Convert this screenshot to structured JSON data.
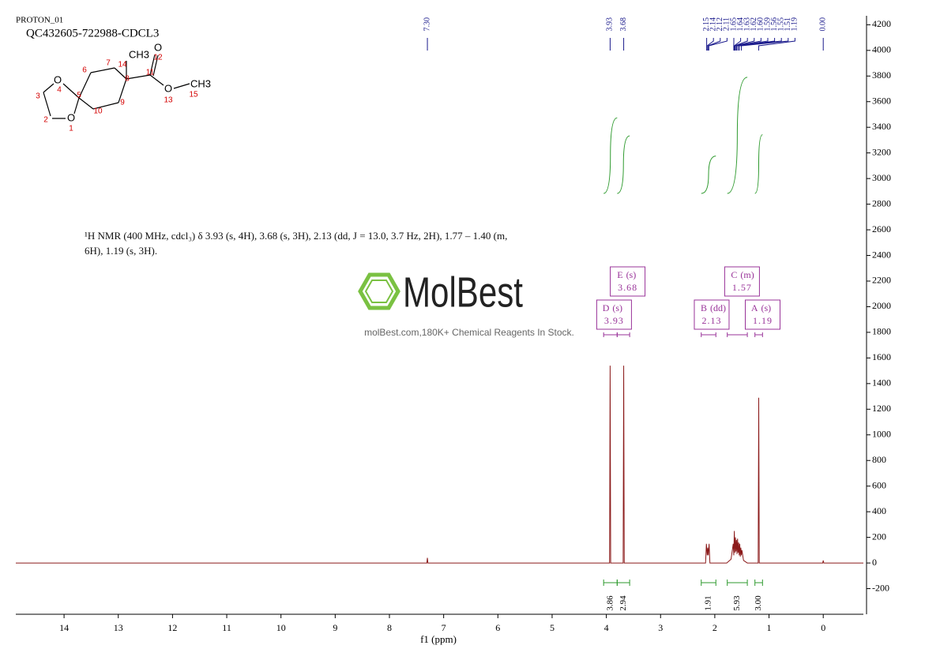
{
  "chart_data": {
    "type": "line",
    "title": "PROTON_01",
    "subtitle": "QC432605-722988-CDCL3",
    "xlabel": "f1 (ppm)",
    "annotation": "¹H NMR (400 MHz, cdcl₃) δ 3.93 (s, 4H), 3.68 (s, 3H), 2.13 (dd, J = 13.0, 3.7 Hz, 2H), 1.77 – 1.40 (m, 6H), 1.19 (s, 3H).",
    "x": [
      14.89,
      7.31,
      7.3,
      7.29,
      3.94,
      3.93,
      3.92,
      3.69,
      3.68,
      3.67,
      2.17,
      2.155,
      2.14,
      2.13,
      2.12,
      2.105,
      2.09,
      1.78,
      1.7,
      1.66,
      1.65,
      1.64,
      1.63,
      1.62,
      1.61,
      1.6,
      1.59,
      1.58,
      1.57,
      1.56,
      1.55,
      1.54,
      1.53,
      1.52,
      1.51,
      1.5,
      1.47,
      1.4,
      1.2,
      1.19,
      1.18,
      0.01,
      0,
      -0.01,
      -0.74
    ],
    "values": [
      0,
      0,
      40,
      0,
      0,
      1540,
      0,
      0,
      1540,
      0,
      0,
      150,
      60,
      120,
      60,
      150,
      0,
      0,
      30,
      150,
      60,
      250,
      80,
      200,
      90,
      180,
      70,
      190,
      80,
      160,
      60,
      150,
      50,
      120,
      60,
      100,
      20,
      0,
      0,
      1290,
      0,
      0,
      20,
      0,
      0
    ],
    "color": "#8b1a1a",
    "xlim": [
      14.89,
      -0.74
    ],
    "xticks": [
      0,
      1,
      2,
      3,
      4,
      5,
      6,
      7,
      8,
      9,
      10,
      11,
      12,
      13,
      14
    ],
    "ylim": [
      -400,
      4270
    ],
    "yticks": [
      -200,
      0,
      200,
      400,
      600,
      800,
      1000,
      1200,
      1400,
      1600,
      1800,
      2000,
      2200,
      2400,
      2600,
      2800,
      3000,
      3200,
      3400,
      3600,
      3800,
      4000,
      4200
    ],
    "peak_picks": [
      {
        "value": 7.3,
        "label": "7.30"
      },
      3.93,
      3.68,
      2.15,
      2.14,
      2.12,
      2.11,
      1.65,
      1.64,
      1.63,
      1.62,
      {
        "value": 1.6,
        "label": "1.60"
      },
      1.59,
      1.56,
      1.55,
      1.51,
      1.19,
      {
        "value": 0,
        "label": "0.00"
      }
    ],
    "peak_color": "#1a1a8c",
    "multiplets": [
      {
        "label": "D",
        "multiplicity": "(s)",
        "shift": 3.93,
        "range": [
          4.05,
          3.8
        ],
        "integral": 3.86
      },
      {
        "label": "E",
        "multiplicity": "(s)",
        "shift": 3.68,
        "range": [
          3.8,
          3.57
        ],
        "integral": 2.94
      },
      {
        "label": "B",
        "multiplicity": "(dd)",
        "shift": 2.13,
        "range": [
          2.25,
          1.98
        ],
        "integral": 1.91
      },
      {
        "label": "C",
        "multiplicity": "(m)",
        "shift": 1.57,
        "range": [
          1.77,
          1.4
        ],
        "integral": 5.93
      },
      {
        "label": "A",
        "multiplicity": "(s)",
        "shift": 1.19,
        "range": [
          1.26,
          1.12
        ],
        "integral": {
          "value": 3,
          "label": "3.00"
        }
      }
    ],
    "integral_color": "#2e9a2e",
    "multiplet_color": "#993399"
  },
  "structure": {
    "labels": [
      "O",
      "O",
      "CH3",
      "O",
      "O",
      "CH3"
    ],
    "numbers": [
      1,
      2,
      3,
      4,
      5,
      6,
      7,
      8,
      9,
      10,
      11,
      12,
      13,
      14,
      15
    ]
  },
  "watermark": {
    "brand": "MolBest",
    "tagline": "molBest.com,180K+ Chemical Reagents In Stock."
  }
}
